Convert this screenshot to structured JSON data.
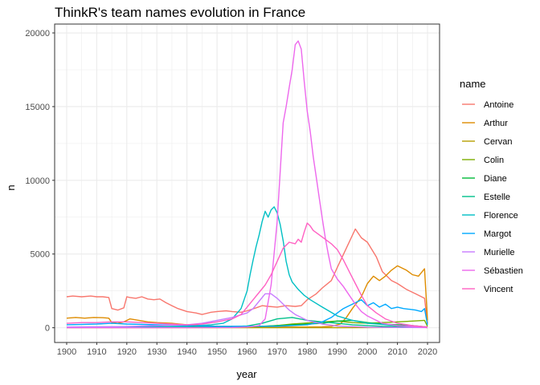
{
  "chart_data": {
    "type": "line",
    "title": "ThinkR's team names evolution in France",
    "xlabel": "year",
    "ylabel": "n",
    "xlim": [
      1896,
      2024
    ],
    "ylim": [
      -1000,
      20600
    ],
    "xticks": [
      1900,
      1910,
      1920,
      1930,
      1940,
      1950,
      1960,
      1970,
      1980,
      1990,
      2000,
      2010,
      2020
    ],
    "yticks": [
      0,
      5000,
      10000,
      15000,
      20000
    ],
    "grid": true,
    "legend": {
      "title": "name",
      "position": "right"
    },
    "series": [
      {
        "name": "Antoine",
        "color": "#F8766D",
        "x": [
          1900,
          1902,
          1905,
          1908,
          1910,
          1912,
          1914,
          1915,
          1917,
          1919,
          1920,
          1921,
          1923,
          1925,
          1927,
          1929,
          1931,
          1933,
          1935,
          1937,
          1940,
          1943,
          1945,
          1948,
          1950,
          1953,
          1955,
          1958,
          1960,
          1963,
          1965,
          1967,
          1970,
          1973,
          1976,
          1978,
          1980,
          1983,
          1985,
          1988,
          1990,
          1993,
          1996,
          1998,
          2000,
          2003,
          2005,
          2008,
          2010,
          2013,
          2016,
          2019,
          2020
        ],
        "y": [
          2100,
          2150,
          2100,
          2150,
          2100,
          2100,
          2050,
          1300,
          1200,
          1350,
          2100,
          2050,
          2000,
          2100,
          1950,
          1900,
          1950,
          1700,
          1500,
          1300,
          1100,
          1000,
          900,
          1050,
          1100,
          1150,
          1100,
          1050,
          1150,
          1350,
          1500,
          1450,
          1400,
          1500,
          1450,
          1500,
          1900,
          2300,
          2700,
          3200,
          4100,
          5400,
          6700,
          6100,
          5800,
          4800,
          3800,
          3200,
          3000,
          2600,
          2300,
          2000,
          300
        ]
      },
      {
        "name": "Arthur",
        "color": "#DE8C00",
        "x": [
          1900,
          1903,
          1906,
          1909,
          1912,
          1914,
          1915,
          1917,
          1919,
          1921,
          1924,
          1927,
          1930,
          1935,
          1940,
          1945,
          1950,
          1955,
          1960,
          1970,
          1980,
          1985,
          1988,
          1991,
          1993,
          1995,
          1998,
          2000,
          2002,
          2004,
          2006,
          2008,
          2010,
          2011,
          2013,
          2015,
          2017,
          2019,
          2020
        ],
        "y": [
          650,
          700,
          650,
          700,
          680,
          650,
          350,
          300,
          400,
          600,
          500,
          400,
          350,
          300,
          200,
          150,
          100,
          80,
          60,
          50,
          50,
          60,
          100,
          250,
          700,
          1300,
          2100,
          3000,
          3500,
          3200,
          3500,
          3900,
          4200,
          4100,
          3900,
          3600,
          3500,
          4000,
          500
        ]
      },
      {
        "name": "Cervan",
        "color": "#B79F00",
        "x": [
          1900,
          1920,
          1940,
          1960,
          1980,
          1990,
          2000,
          2005,
          2010,
          2015,
          2019,
          2020
        ],
        "y": [
          0,
          0,
          0,
          0,
          0,
          5,
          10,
          15,
          20,
          20,
          25,
          5
        ]
      },
      {
        "name": "Colin",
        "color": "#7CAE00",
        "x": [
          1900,
          1920,
          1940,
          1955,
          1965,
          1970,
          1975,
          1980,
          1985,
          1990,
          1995,
          2000,
          2005,
          2010,
          2015,
          2019,
          2020
        ],
        "y": [
          50,
          50,
          40,
          40,
          80,
          150,
          250,
          320,
          400,
          450,
          350,
          300,
          350,
          400,
          450,
          500,
          100
        ]
      },
      {
        "name": "Diane",
        "color": "#00BA38",
        "x": [
          1900,
          1920,
          1940,
          1955,
          1965,
          1975,
          1985,
          1990,
          1995,
          2000,
          2005,
          2010,
          2015,
          2020
        ],
        "y": [
          50,
          60,
          50,
          40,
          100,
          200,
          300,
          450,
          500,
          350,
          250,
          200,
          150,
          50
        ]
      },
      {
        "name": "Estelle",
        "color": "#00C08B",
        "x": [
          1900,
          1920,
          1940,
          1950,
          1960,
          1965,
          1970,
          1975,
          1980,
          1985,
          1990,
          1995,
          2000,
          2005,
          2010,
          2015,
          2020
        ],
        "y": [
          50,
          50,
          40,
          50,
          120,
          300,
          600,
          700,
          500,
          400,
          300,
          200,
          150,
          100,
          80,
          50,
          20
        ]
      },
      {
        "name": "Florence",
        "color": "#00BFC4",
        "x": [
          1900,
          1920,
          1940,
          1948,
          1952,
          1955,
          1958,
          1960,
          1961,
          1962,
          1963,
          1964,
          1965,
          1966,
          1967,
          1968,
          1969,
          1970,
          1971,
          1972,
          1973,
          1974,
          1975,
          1977,
          1979,
          1981,
          1985,
          1990,
          1995,
          2000,
          2010,
          2020
        ],
        "y": [
          50,
          60,
          100,
          200,
          300,
          600,
          1300,
          2500,
          3600,
          4600,
          5500,
          6300,
          7200,
          7900,
          7500,
          8000,
          8200,
          7800,
          7000,
          5900,
          4500,
          3600,
          3100,
          2600,
          2200,
          1900,
          1400,
          800,
          500,
          300,
          150,
          50
        ]
      },
      {
        "name": "Margot",
        "color": "#00A9FF",
        "x": [
          1900,
          1910,
          1915,
          1920,
          1930,
          1940,
          1950,
          1960,
          1970,
          1980,
          1985,
          1988,
          1990,
          1992,
          1995,
          1998,
          2000,
          2002,
          2004,
          2006,
          2008,
          2010,
          2012,
          2014,
          2016,
          2018,
          2019,
          2020
        ],
        "y": [
          200,
          250,
          300,
          250,
          200,
          150,
          100,
          100,
          100,
          200,
          400,
          700,
          1000,
          1300,
          1600,
          1900,
          1500,
          1700,
          1400,
          1600,
          1300,
          1400,
          1300,
          1250,
          1200,
          1100,
          1300,
          200
        ]
      },
      {
        "name": "Murielle",
        "color": "#C77CFF",
        "x": [
          1900,
          1910,
          1920,
          1930,
          1940,
          1945,
          1950,
          1955,
          1960,
          1962,
          1964,
          1966,
          1968,
          1970,
          1972,
          1974,
          1976,
          1980,
          1985,
          1990,
          2000,
          2010,
          2020
        ],
        "y": [
          50,
          60,
          80,
          150,
          200,
          300,
          500,
          700,
          1000,
          1300,
          1800,
          2300,
          2300,
          2000,
          1600,
          1200,
          900,
          500,
          250,
          120,
          40,
          20,
          10
        ]
      },
      {
        "name": "Sébastien",
        "color": "#ED68ED",
        "x": [
          1900,
          1920,
          1940,
          1955,
          1960,
          1962,
          1964,
          1966,
          1968,
          1970,
          1972,
          1973,
          1974,
          1975,
          1976,
          1977,
          1978,
          1979,
          1980,
          1981,
          1982,
          1983,
          1984,
          1985,
          1986,
          1987,
          1988,
          1990,
          1992,
          1994,
          1996,
          1998,
          2000,
          2002,
          2005,
          2010,
          2015,
          2020
        ],
        "y": [
          0,
          0,
          0,
          20,
          50,
          80,
          150,
          600,
          2900,
          7200,
          13900,
          15000,
          16300,
          17500,
          19200,
          19450,
          18900,
          16700,
          14700,
          13300,
          11600,
          10200,
          8800,
          7400,
          6100,
          5000,
          4000,
          3300,
          2800,
          2200,
          1600,
          1100,
          800,
          600,
          300,
          150,
          80,
          20
        ]
      },
      {
        "name": "Vincent",
        "color": "#FF61C3",
        "x": [
          1900,
          1905,
          1910,
          1915,
          1920,
          1925,
          1930,
          1935,
          1940,
          1945,
          1950,
          1955,
          1958,
          1960,
          1962,
          1964,
          1966,
          1968,
          1970,
          1972,
          1974,
          1976,
          1977,
          1978,
          1979,
          1980,
          1981,
          1982,
          1984,
          1986,
          1988,
          1990,
          1992,
          1994,
          1996,
          1998,
          2000,
          2003,
          2006,
          2010,
          2015,
          2020
        ],
        "y": [
          300,
          350,
          350,
          400,
          400,
          350,
          300,
          250,
          200,
          250,
          400,
          600,
          900,
          1400,
          1900,
          2400,
          2900,
          3600,
          4500,
          5400,
          5800,
          5700,
          6000,
          5800,
          6500,
          7100,
          6900,
          6600,
          6300,
          6000,
          5700,
          5300,
          4600,
          3800,
          3000,
          2200,
          1500,
          1000,
          600,
          300,
          150,
          50
        ]
      }
    ]
  }
}
